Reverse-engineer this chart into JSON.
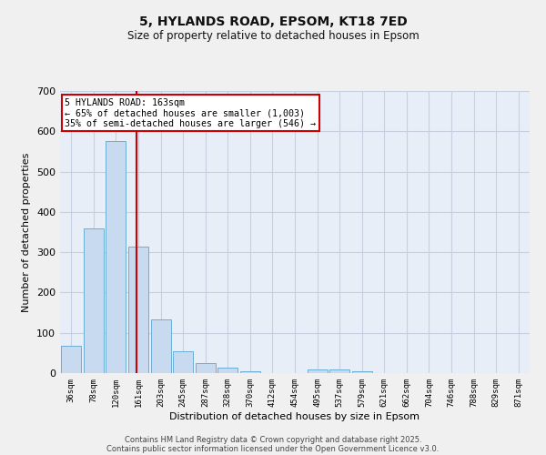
{
  "title1": "5, HYLANDS ROAD, EPSOM, KT18 7ED",
  "title2": "Size of property relative to detached houses in Epsom",
  "xlabel": "Distribution of detached houses by size in Epsom",
  "ylabel": "Number of detached properties",
  "bin_labels": [
    "36sqm",
    "78sqm",
    "120sqm",
    "161sqm",
    "203sqm",
    "245sqm",
    "287sqm",
    "328sqm",
    "370sqm",
    "412sqm",
    "454sqm",
    "495sqm",
    "537sqm",
    "579sqm",
    "621sqm",
    "662sqm",
    "704sqm",
    "746sqm",
    "788sqm",
    "829sqm",
    "871sqm"
  ],
  "bar_heights": [
    67,
    358,
    575,
    315,
    133,
    55,
    25,
    13,
    5,
    0,
    0,
    8,
    8,
    5,
    0,
    0,
    0,
    0,
    0,
    0,
    0
  ],
  "bar_color": "#c8daf0",
  "bar_edge_color": "#6baed6",
  "grid_color": "#c8d0e0",
  "background_color": "#e8eef8",
  "fig_background": "#f0f0f0",
  "red_line_x": 2.93,
  "annotation_text": "5 HYLANDS ROAD: 163sqm\n← 65% of detached houses are smaller (1,003)\n35% of semi-detached houses are larger (546) →",
  "annotation_box_color": "#ffffff",
  "annotation_box_edge": "#cc0000",
  "red_line_color": "#cc0000",
  "footer1": "Contains HM Land Registry data © Crown copyright and database right 2025.",
  "footer2": "Contains public sector information licensed under the Open Government Licence v3.0.",
  "ylim": [
    0,
    700
  ],
  "yticks": [
    0,
    100,
    200,
    300,
    400,
    500,
    600,
    700
  ]
}
